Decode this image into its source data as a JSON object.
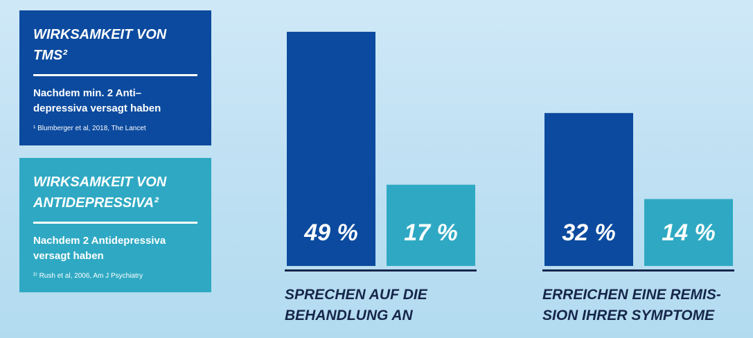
{
  "chart_data": {
    "type": "bar",
    "categories": [
      [
        "SPRECHEN AUF DIE",
        "BEHANDLUNG AN"
      ],
      [
        "ERREICHEN EINE REMIS-",
        "SION IHRER SYMPTOME"
      ]
    ],
    "series": [
      {
        "name": "WIRKSAMKEIT VON TMS²",
        "color": "#0b4a9e",
        "description": [
          "Nachdem min. 2 Anti–",
          "depressiva versagt haben"
        ],
        "note": "¹ Blumberger et al, 2018, The Lancet",
        "values": [
          49,
          32
        ],
        "value_labels": [
          "49 %",
          "32 %"
        ]
      },
      {
        "name": "WIRKSAMKEIT VON ANTIDEPRESSIVA²",
        "color": "#2fa9c3",
        "description": [
          "Nachdem 2 Antidepressiva",
          "versagt haben"
        ],
        "note": "²⁾ Rush et al, 2006,  Am J Psychiatry",
        "values": [
          17,
          14
        ],
        "value_labels": [
          "17 %",
          "14 %"
        ]
      }
    ]
  }
}
